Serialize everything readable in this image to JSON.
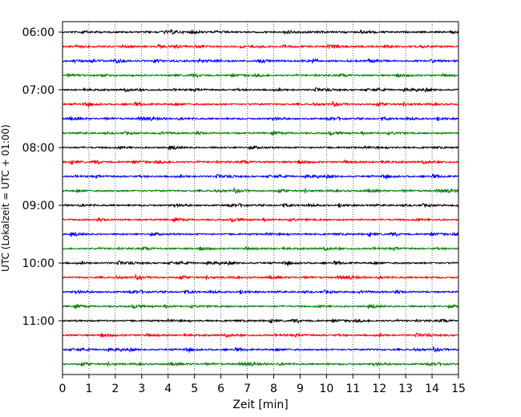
{
  "chart_data": {
    "type": "line",
    "title": "",
    "xlabel": "Zeit  [min]",
    "ylabel": "UTC (Lokalzeit = UTC + 01:00)",
    "xlim": [
      0,
      15
    ],
    "x_ticks": [
      "0",
      "1",
      "2",
      "3",
      "4",
      "5",
      "6",
      "7",
      "8",
      "9",
      "10",
      "11",
      "12",
      "13",
      "14",
      "15"
    ],
    "y_ticks": [
      "06:00",
      "07:00",
      "08:00",
      "09:00",
      "10:00",
      "11:00"
    ],
    "grid": {
      "x": "dotted",
      "y": false
    },
    "start_time": "06:00",
    "trace_interval_min": 15,
    "trace_count": 24,
    "colors": [
      "#000000",
      "#ff0000",
      "#0000ff",
      "#008000"
    ]
  }
}
